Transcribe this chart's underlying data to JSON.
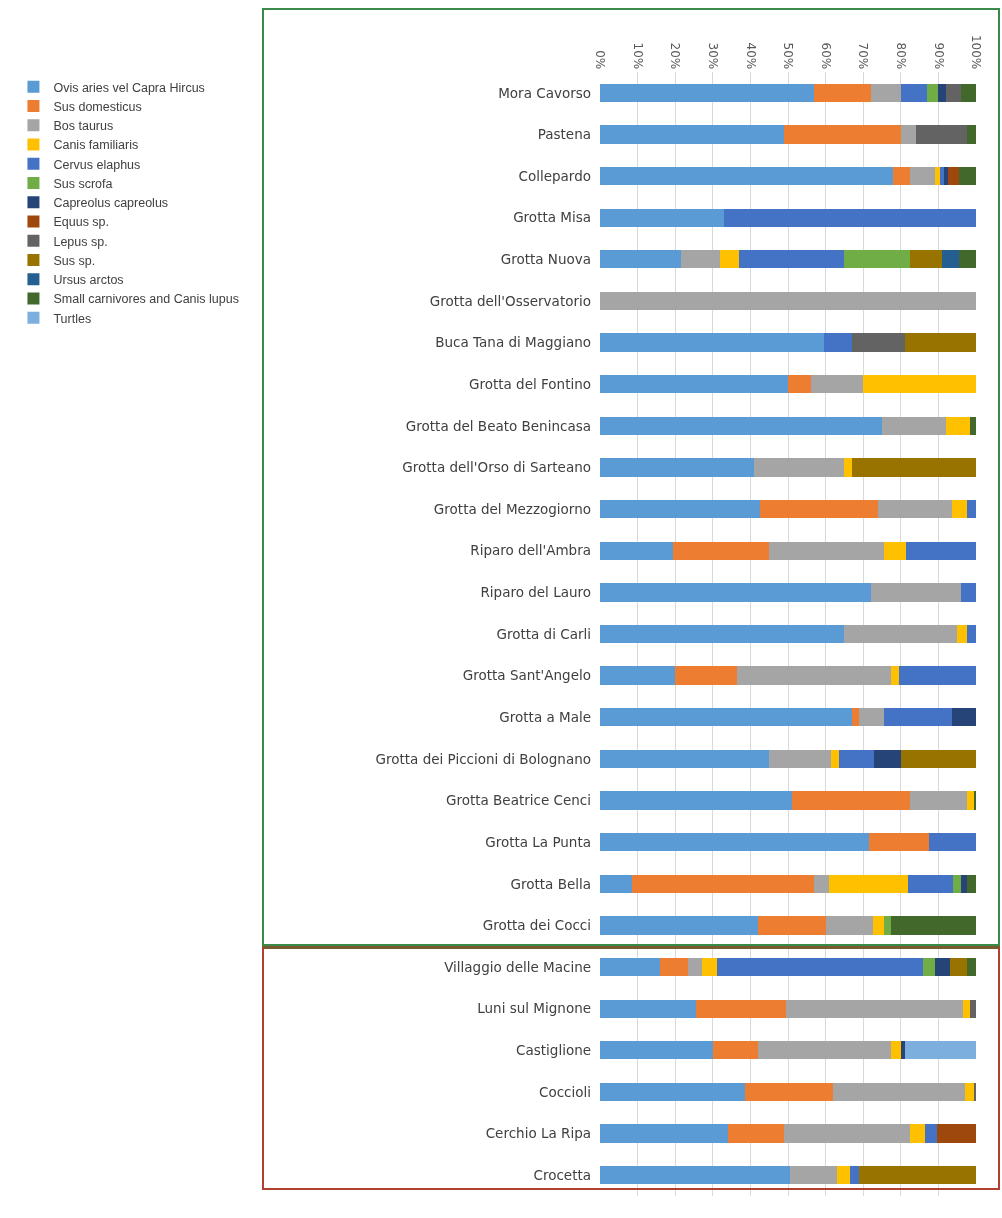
{
  "chart_data": {
    "type": "bar",
    "orientation": "horizontal",
    "stacked": true,
    "legend": "left",
    "grid": "x",
    "xlim": [
      0,
      100
    ],
    "xticks": [
      {
        "value": 0,
        "label": "0%"
      },
      {
        "value": 10,
        "label": "10%"
      },
      {
        "value": 20,
        "label": "20%"
      },
      {
        "value": 30,
        "label": "30%"
      },
      {
        "value": 40,
        "label": "40%"
      },
      {
        "value": 50,
        "label": "50%"
      },
      {
        "value": 60,
        "label": "60%"
      },
      {
        "value": 70,
        "label": "70%"
      },
      {
        "value": 80,
        "label": "80%"
      },
      {
        "value": 90,
        "label": "90%"
      },
      {
        "value": 100,
        "label": "100%"
      }
    ],
    "categories": [
      "Mora Cavorso",
      "Pastena",
      "Collepardo",
      "Grotta Misa",
      "Grotta Nuova",
      "Grotta dell'Osservatorio",
      "Buca Tana di Maggiano",
      "Grotta del Fontino",
      "Grotta del Beato Benincasa",
      "Grotta dell'Orso di Sarteano",
      "Grotta del Mezzogiorno",
      "Riparo dell'Ambra",
      "Riparo del Lauro",
      "Grotta di Carli",
      "Grotta Sant'Angelo",
      "Grotta a Male",
      "Grotta dei Piccioni di Bolognano",
      "Grotta Beatrice Cenci",
      "Grotta La Punta",
      "Grotta Bella",
      "Grotta dei Cocci",
      "Villaggio delle Macine",
      "Luni sul Mignone",
      "Castiglione",
      "Coccioli",
      "Cerchio La Ripa",
      "Crocetta"
    ],
    "series": [
      {
        "name": "Ovis aries vel Capra Hircus",
        "color": "#5b9bd5",
        "values": [
          57,
          49,
          78,
          33,
          21.5,
          null,
          59.5,
          50,
          75,
          41,
          42.5,
          19.5,
          72,
          65,
          20,
          67,
          45,
          51,
          71.5,
          8.5,
          42,
          16,
          25.5,
          30,
          38.5,
          34,
          50.5
        ]
      },
      {
        "name": "Sus domesticus",
        "color": "#ed7d31",
        "values": [
          15,
          31,
          4.5,
          null,
          null,
          null,
          null,
          6,
          null,
          null,
          31.5,
          25.5,
          null,
          null,
          16.5,
          2,
          null,
          31.5,
          16,
          48.5,
          18,
          7.5,
          24,
          12,
          23.5,
          15,
          null
        ]
      },
      {
        "name": "Bos taurus",
        "color": "#a5a5a5",
        "values": [
          8,
          4,
          6.5,
          null,
          10.5,
          100,
          null,
          14,
          17,
          24,
          19.5,
          30.5,
          24,
          30,
          41,
          6.5,
          16.5,
          15,
          null,
          4,
          12.5,
          3.5,
          47,
          35.5,
          35,
          33.5,
          12.5
        ]
      },
      {
        "name": "Canis familiaris",
        "color": "#ffc000",
        "values": [
          null,
          null,
          1.5,
          null,
          5,
          null,
          null,
          30,
          6.5,
          2,
          4,
          6,
          null,
          2.5,
          2,
          null,
          2,
          2,
          null,
          21,
          3,
          4,
          2,
          2.5,
          2.5,
          4,
          3.5
        ]
      },
      {
        "name": "Cervus elaphus",
        "color": "#4472c4",
        "values": [
          7,
          null,
          1,
          67,
          28,
          null,
          7.5,
          null,
          null,
          null,
          2.5,
          18.5,
          4,
          2.5,
          20.5,
          18,
          9.5,
          null,
          12.5,
          12,
          null,
          55,
          null,
          null,
          null,
          3,
          2.5
        ]
      },
      {
        "name": "Sus scrofa",
        "color": "#70ad47",
        "values": [
          3,
          null,
          null,
          null,
          17.5,
          null,
          null,
          null,
          null,
          null,
          null,
          null,
          null,
          null,
          null,
          null,
          null,
          null,
          null,
          2,
          2,
          3,
          null,
          null,
          null,
          null,
          null
        ]
      },
      {
        "name": "Capreolus capreolus",
        "color": "#264478",
        "values": [
          2,
          null,
          1,
          null,
          null,
          null,
          null,
          null,
          null,
          null,
          null,
          null,
          null,
          null,
          null,
          6.5,
          7,
          null,
          null,
          1.5,
          null,
          4,
          null,
          1,
          null,
          null,
          null
        ]
      },
      {
        "name": "Equus sp.",
        "color": "#9e480e",
        "values": [
          null,
          null,
          3,
          null,
          null,
          null,
          null,
          null,
          null,
          null,
          null,
          null,
          null,
          null,
          null,
          null,
          null,
          null,
          null,
          null,
          null,
          null,
          null,
          null,
          null,
          10.5,
          null
        ]
      },
      {
        "name": "Lepus sp.",
        "color": "#636363",
        "values": [
          4,
          13.5,
          null,
          null,
          null,
          null,
          14,
          null,
          null,
          null,
          null,
          null,
          null,
          null,
          null,
          null,
          null,
          null,
          null,
          null,
          null,
          null,
          1.5,
          null,
          0.5,
          null,
          null
        ]
      },
      {
        "name": "Sus sp.",
        "color": "#997300",
        "values": [
          null,
          null,
          null,
          null,
          8.5,
          null,
          19,
          null,
          null,
          33,
          null,
          null,
          null,
          null,
          null,
          null,
          20,
          null,
          null,
          null,
          null,
          4.5,
          null,
          null,
          null,
          null,
          31
        ]
      },
      {
        "name": "Ursus arctos",
        "color": "#255e91",
        "values": [
          null,
          null,
          null,
          null,
          4.5,
          null,
          null,
          null,
          null,
          null,
          null,
          null,
          null,
          null,
          null,
          null,
          null,
          null,
          null,
          null,
          null,
          null,
          null,
          null,
          null,
          null,
          null
        ]
      },
      {
        "name": "Small carnivores and Canis lupus",
        "color": "#43682b",
        "values": [
          4,
          2.5,
          4.5,
          null,
          4.5,
          null,
          null,
          null,
          1.5,
          null,
          null,
          null,
          null,
          null,
          null,
          null,
          null,
          0.5,
          null,
          2.5,
          22.5,
          2.5,
          null,
          null,
          null,
          null,
          null
        ]
      },
      {
        "name": "Turtles",
        "color": "#7cafdd",
        "values": [
          null,
          null,
          null,
          null,
          null,
          null,
          null,
          null,
          null,
          null,
          null,
          null,
          null,
          null,
          null,
          null,
          null,
          null,
          null,
          null,
          null,
          null,
          null,
          19,
          null,
          null,
          null
        ]
      }
    ]
  }
}
